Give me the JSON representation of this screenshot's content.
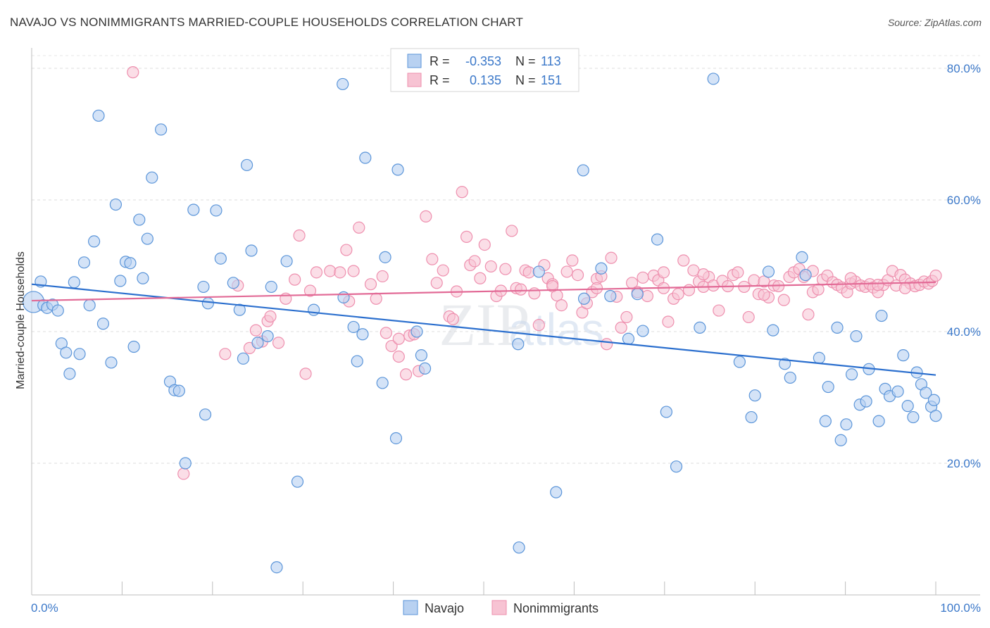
{
  "title": "NAVAJO VS NONIMMIGRANTS MARRIED-COUPLE HOUSEHOLDS CORRELATION CHART",
  "source": "Source: ZipAtlas.com",
  "watermark": "ZIPatlas",
  "legend_box": {
    "rows": [
      {
        "r_label": "R =",
        "r_value": "-0.353",
        "n_label": "N =",
        "n_value": "113"
      },
      {
        "r_label": "R =",
        "r_value": "0.135",
        "n_label": "N =",
        "n_value": "151"
      }
    ]
  },
  "chart_data": {
    "type": "scatter",
    "ylabel": "Married-couple Households",
    "xlabel": "",
    "xlim": [
      0,
      100
    ],
    "ylim": [
      0,
      80
    ],
    "x_tick_labels": [
      "0.0%",
      "100.0%"
    ],
    "y_ticks": [
      20,
      40,
      60,
      80
    ],
    "y_tick_labels": [
      "20.0%",
      "40.0%",
      "60.0%",
      "80.0%"
    ],
    "grid": true,
    "legend_position": "bottom-center",
    "colors": {
      "Navajo": "#5b95d9",
      "Nonimmigrants": "#ee8fae",
      "Navajo_line": "#2b6fce",
      "Nonimmigrants_line": "#e26a96",
      "tick_label": "#3b78c9"
    },
    "series": [
      {
        "name": "Navajo",
        "trend": {
          "x": [
            0,
            100
          ],
          "y": [
            47.2,
            33.4
          ]
        },
        "points": [
          [
            0.2,
            44.5
          ],
          [
            1.0,
            47.6
          ],
          [
            1.3,
            44.0
          ],
          [
            1.7,
            43.6
          ],
          [
            2.3,
            44.1
          ],
          [
            2.9,
            43.2
          ],
          [
            3.3,
            38.2
          ],
          [
            3.8,
            36.8
          ],
          [
            4.2,
            33.6
          ],
          [
            4.7,
            47.5
          ],
          [
            5.3,
            36.6
          ],
          [
            5.8,
            50.5
          ],
          [
            6.4,
            44.0
          ],
          [
            6.9,
            53.7
          ],
          [
            7.4,
            72.8
          ],
          [
            7.9,
            41.2
          ],
          [
            8.8,
            35.3
          ],
          [
            9.3,
            59.3
          ],
          [
            9.8,
            47.7
          ],
          [
            10.4,
            50.6
          ],
          [
            10.9,
            50.4
          ],
          [
            11.3,
            37.7
          ],
          [
            11.9,
            57.0
          ],
          [
            12.3,
            48.1
          ],
          [
            12.8,
            54.1
          ],
          [
            13.3,
            63.4
          ],
          [
            14.3,
            70.7
          ],
          [
            15.3,
            32.4
          ],
          [
            15.8,
            31.1
          ],
          [
            16.3,
            31.0
          ],
          [
            17.0,
            20.0
          ],
          [
            17.9,
            58.5
          ],
          [
            19.0,
            46.8
          ],
          [
            19.2,
            27.4
          ],
          [
            19.5,
            44.3
          ],
          [
            20.4,
            58.4
          ],
          [
            20.9,
            51.1
          ],
          [
            22.3,
            47.4
          ],
          [
            23.0,
            43.3
          ],
          [
            23.4,
            35.9
          ],
          [
            23.8,
            65.3
          ],
          [
            24.3,
            52.3
          ],
          [
            25.0,
            38.3
          ],
          [
            26.1,
            39.3
          ],
          [
            26.5,
            46.8
          ],
          [
            27.1,
            4.2
          ],
          [
            28.2,
            50.7
          ],
          [
            29.4,
            17.2
          ],
          [
            31.2,
            43.3
          ],
          [
            34.4,
            77.6
          ],
          [
            34.5,
            45.2
          ],
          [
            35.6,
            40.7
          ],
          [
            36.0,
            35.5
          ],
          [
            36.6,
            39.6
          ],
          [
            36.9,
            66.4
          ],
          [
            38.8,
            32.2
          ],
          [
            39.1,
            51.3
          ],
          [
            40.3,
            23.8
          ],
          [
            40.5,
            64.6
          ],
          [
            42.6,
            40.0
          ],
          [
            43.1,
            36.4
          ],
          [
            43.5,
            34.4
          ],
          [
            53.8,
            38.1
          ],
          [
            53.9,
            7.2
          ],
          [
            56.1,
            49.1
          ],
          [
            58.0,
            15.6
          ],
          [
            61.0,
            64.5
          ],
          [
            61.1,
            45.0
          ],
          [
            63.0,
            49.6
          ],
          [
            64.0,
            45.4
          ],
          [
            66.0,
            38.9
          ],
          [
            67.0,
            45.7
          ],
          [
            67.6,
            40.1
          ],
          [
            69.2,
            54.0
          ],
          [
            70.2,
            27.8
          ],
          [
            71.3,
            19.5
          ],
          [
            73.9,
            40.6
          ],
          [
            75.4,
            78.4
          ],
          [
            78.3,
            35.4
          ],
          [
            79.6,
            27.0
          ],
          [
            80.0,
            30.3
          ],
          [
            81.5,
            49.1
          ],
          [
            82.0,
            40.2
          ],
          [
            83.3,
            35.1
          ],
          [
            83.9,
            33.0
          ],
          [
            85.2,
            51.3
          ],
          [
            85.6,
            48.6
          ],
          [
            87.1,
            36.0
          ],
          [
            87.8,
            26.4
          ],
          [
            88.1,
            31.6
          ],
          [
            89.1,
            40.6
          ],
          [
            89.5,
            23.5
          ],
          [
            90.1,
            25.9
          ],
          [
            90.7,
            33.5
          ],
          [
            91.2,
            39.3
          ],
          [
            91.6,
            28.9
          ],
          [
            92.3,
            29.4
          ],
          [
            92.6,
            34.3
          ],
          [
            93.7,
            26.4
          ],
          [
            94.0,
            42.4
          ],
          [
            94.4,
            31.3
          ],
          [
            94.9,
            30.2
          ],
          [
            95.8,
            30.9
          ],
          [
            96.4,
            36.4
          ],
          [
            96.9,
            28.7
          ],
          [
            97.5,
            27.0
          ],
          [
            97.9,
            33.8
          ],
          [
            98.4,
            32.0
          ],
          [
            98.9,
            30.7
          ],
          [
            99.5,
            28.6
          ],
          [
            99.8,
            29.6
          ],
          [
            100.0,
            27.2
          ]
        ]
      },
      {
        "name": "Nonimmigrants",
        "trend": {
          "x": [
            0,
            100
          ],
          "y": [
            44.7,
            47.5
          ]
        },
        "points": [
          [
            11.2,
            79.4
          ],
          [
            16.8,
            18.4
          ],
          [
            21.4,
            36.6
          ],
          [
            22.8,
            47.0
          ],
          [
            24.1,
            37.5
          ],
          [
            24.8,
            40.2
          ],
          [
            25.5,
            38.5
          ],
          [
            26.1,
            41.6
          ],
          [
            26.4,
            42.3
          ],
          [
            27.3,
            38.3
          ],
          [
            28.1,
            45.0
          ],
          [
            29.1,
            47.9
          ],
          [
            29.6,
            54.6
          ],
          [
            30.3,
            33.6
          ],
          [
            30.8,
            46.2
          ],
          [
            31.5,
            49.0
          ],
          [
            33.0,
            49.2
          ],
          [
            34.1,
            49.0
          ],
          [
            34.8,
            52.4
          ],
          [
            35.1,
            44.6
          ],
          [
            36.2,
            55.8
          ],
          [
            37.5,
            47.2
          ],
          [
            38.1,
            45.0
          ],
          [
            38.8,
            48.4
          ],
          [
            39.2,
            39.8
          ],
          [
            39.8,
            37.8
          ],
          [
            40.6,
            36.2
          ],
          [
            41.4,
            33.5
          ],
          [
            41.8,
            39.4
          ],
          [
            42.3,
            39.6
          ],
          [
            42.8,
            34.0
          ],
          [
            43.6,
            57.5
          ],
          [
            44.3,
            51.0
          ],
          [
            44.8,
            47.4
          ],
          [
            45.5,
            49.3
          ],
          [
            46.2,
            42.3
          ],
          [
            46.6,
            41.9
          ],
          [
            47.0,
            46.1
          ],
          [
            47.6,
            61.2
          ],
          [
            48.1,
            54.4
          ],
          [
            48.5,
            50.1
          ],
          [
            49.0,
            50.7
          ],
          [
            49.6,
            48.1
          ],
          [
            50.1,
            53.2
          ],
          [
            50.8,
            49.9
          ],
          [
            51.4,
            45.4
          ],
          [
            51.9,
            46.2
          ],
          [
            52.4,
            49.5
          ],
          [
            53.1,
            55.3
          ],
          [
            53.6,
            46.6
          ],
          [
            54.1,
            46.4
          ],
          [
            54.6,
            49.3
          ],
          [
            55.0,
            49.0
          ],
          [
            55.6,
            45.8
          ],
          [
            56.1,
            41.0
          ],
          [
            56.7,
            50.1
          ],
          [
            57.1,
            48.1
          ],
          [
            57.6,
            47.2
          ],
          [
            58.1,
            45.5
          ],
          [
            58.6,
            44.0
          ],
          [
            59.2,
            49.1
          ],
          [
            59.8,
            50.8
          ],
          [
            60.4,
            48.6
          ],
          [
            60.9,
            42.9
          ],
          [
            61.4,
            44.3
          ],
          [
            62.0,
            46.0
          ],
          [
            62.5,
            48.0
          ],
          [
            63.0,
            48.4
          ],
          [
            63.6,
            38.1
          ],
          [
            64.1,
            51.2
          ],
          [
            64.7,
            45.3
          ],
          [
            65.2,
            40.6
          ],
          [
            65.8,
            42.2
          ],
          [
            66.4,
            47.4
          ],
          [
            67.0,
            46.0
          ],
          [
            67.6,
            48.2
          ],
          [
            68.1,
            45.4
          ],
          [
            68.8,
            48.5
          ],
          [
            69.3,
            47.8
          ],
          [
            69.9,
            49.0
          ],
          [
            70.4,
            41.5
          ],
          [
            71.0,
            45.0
          ],
          [
            71.5,
            45.7
          ],
          [
            72.1,
            50.8
          ],
          [
            72.7,
            46.3
          ],
          [
            73.2,
            49.3
          ],
          [
            73.8,
            47.6
          ],
          [
            74.3,
            46.8
          ],
          [
            74.9,
            48.3
          ],
          [
            75.4,
            47.0
          ],
          [
            76.0,
            43.2
          ],
          [
            76.4,
            47.7
          ],
          [
            77.0,
            46.9
          ],
          [
            77.6,
            48.6
          ],
          [
            78.1,
            49.0
          ],
          [
            78.8,
            46.8
          ],
          [
            79.3,
            42.2
          ],
          [
            79.9,
            47.8
          ],
          [
            80.4,
            45.7
          ],
          [
            81.0,
            47.6
          ],
          [
            81.5,
            45.2
          ],
          [
            82.1,
            47.0
          ],
          [
            82.6,
            46.9
          ],
          [
            83.2,
            44.8
          ],
          [
            83.8,
            48.3
          ],
          [
            84.3,
            49.0
          ],
          [
            84.9,
            49.5
          ],
          [
            85.4,
            48.3
          ],
          [
            85.9,
            42.6
          ],
          [
            86.4,
            46.0
          ],
          [
            87.0,
            46.4
          ],
          [
            87.5,
            47.9
          ],
          [
            88.0,
            48.5
          ],
          [
            88.6,
            47.5
          ],
          [
            89.1,
            47.1
          ],
          [
            89.6,
            46.7
          ],
          [
            90.2,
            46.0
          ],
          [
            90.6,
            47.3
          ],
          [
            91.1,
            47.6
          ],
          [
            91.7,
            47.0
          ],
          [
            92.2,
            46.8
          ],
          [
            92.7,
            47.2
          ],
          [
            93.1,
            46.7
          ],
          [
            93.6,
            46.0
          ],
          [
            94.2,
            47.1
          ],
          [
            94.7,
            47.8
          ],
          [
            95.2,
            49.2
          ],
          [
            95.6,
            47.0
          ],
          [
            96.1,
            48.6
          ],
          [
            96.6,
            47.9
          ],
          [
            97.2,
            47.3
          ],
          [
            97.7,
            46.9
          ],
          [
            98.2,
            47.1
          ],
          [
            98.7,
            47.6
          ],
          [
            99.2,
            47.3
          ],
          [
            99.6,
            47.7
          ],
          [
            100.0,
            48.5
          ],
          [
            40.6,
            38.9
          ],
          [
            35.6,
            49.2
          ],
          [
            57.6,
            46.9
          ],
          [
            62.5,
            46.6
          ],
          [
            69.9,
            46.6
          ],
          [
            74.3,
            48.7
          ],
          [
            81.0,
            45.6
          ],
          [
            86.4,
            49.2
          ],
          [
            90.6,
            48.1
          ],
          [
            93.6,
            47.1
          ],
          [
            96.6,
            46.6
          ]
        ]
      }
    ]
  }
}
